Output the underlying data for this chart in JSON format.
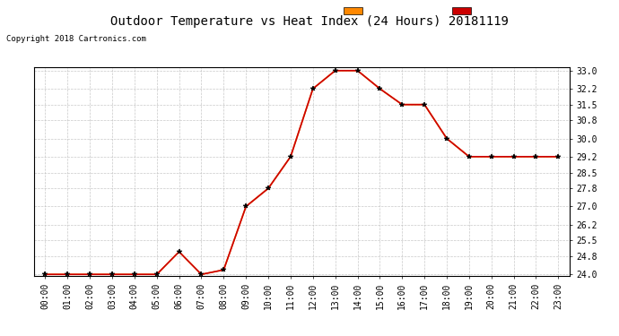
{
  "title": "Outdoor Temperature vs Heat Index (24 Hours) 20181119",
  "copyright": "Copyright 2018 Cartronics.com",
  "hours": [
    "00:00",
    "01:00",
    "02:00",
    "03:00",
    "04:00",
    "05:00",
    "06:00",
    "07:00",
    "08:00",
    "09:00",
    "10:00",
    "11:00",
    "12:00",
    "13:00",
    "14:00",
    "15:00",
    "16:00",
    "17:00",
    "18:00",
    "19:00",
    "20:00",
    "21:00",
    "22:00",
    "23:00"
  ],
  "heat_index": [
    24.0,
    24.0,
    24.0,
    24.0,
    24.0,
    24.0,
    25.0,
    24.0,
    24.2,
    27.0,
    27.8,
    29.2,
    32.2,
    33.0,
    33.0,
    32.2,
    31.5,
    31.5,
    30.0,
    29.2,
    29.2,
    29.2,
    29.2,
    29.2
  ],
  "temperature": [
    24.0,
    24.0,
    24.0,
    24.0,
    24.0,
    24.0,
    25.0,
    24.0,
    24.2,
    27.0,
    27.8,
    29.2,
    32.2,
    33.0,
    33.0,
    32.2,
    31.5,
    31.5,
    30.0,
    29.2,
    29.2,
    29.2,
    29.2,
    29.2
  ],
  "heat_index_color": "#ff8800",
  "temperature_color": "#cc0000",
  "ylim_min": 24.0,
  "ylim_max": 33.0,
  "yticks": [
    24.0,
    24.8,
    25.5,
    26.2,
    27.0,
    27.8,
    28.5,
    29.2,
    30.0,
    30.8,
    31.5,
    32.2,
    33.0
  ],
  "background_color": "#ffffff",
  "grid_color": "#bbbbbb",
  "title_fontsize": 10,
  "copyright_fontsize": 6.5,
  "tick_fontsize": 7,
  "legend_heat_index_bg": "#ff8800",
  "legend_temperature_bg": "#cc0000",
  "legend_text_color": "#ffffff",
  "legend_fontsize": 7
}
